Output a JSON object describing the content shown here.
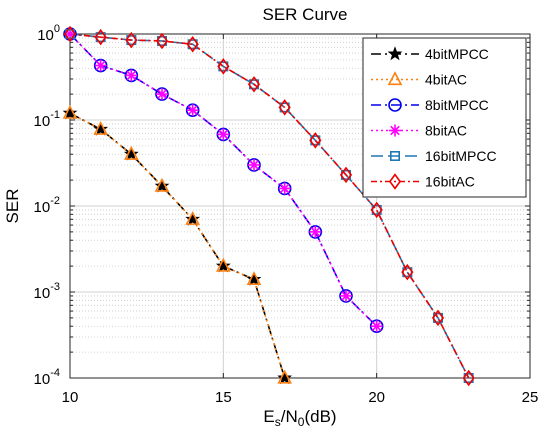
{
  "chart_data": {
    "type": "line",
    "title": "SER Curve",
    "xlabel_main": "E",
    "xlabel_sub_s": "s",
    "xlabel_mid": "/N",
    "xlabel_sub_0": "0",
    "xlabel_unit": "(dB)",
    "ylabel": "SER",
    "xlim": [
      10,
      25
    ],
    "ylim": [
      0.0001,
      1
    ],
    "yscale": "log",
    "grid": true,
    "legend_position": "top-right",
    "x_ticks": [
      "10",
      "15",
      "20",
      "25"
    ],
    "y_ticks": [
      {
        "base": "10",
        "exp": "0"
      },
      {
        "base": "10",
        "exp": "-1"
      },
      {
        "base": "10",
        "exp": "-2"
      },
      {
        "base": "10",
        "exp": "-3"
      },
      {
        "base": "10",
        "exp": "-4"
      }
    ],
    "series": [
      {
        "name": "4bitMPCC",
        "color": "#000000",
        "dash": "10,4,2,4",
        "marker": "star",
        "x": [
          10,
          11,
          12,
          13,
          14,
          15,
          16,
          17
        ],
        "y": [
          0.12,
          0.078,
          0.04,
          0.017,
          0.007,
          0.002,
          0.0014,
          0.0001
        ]
      },
      {
        "name": "4bitAC",
        "color": "#ff7f0e",
        "dash": "2,3",
        "marker": "triangle",
        "x": [
          10,
          11,
          12,
          13,
          14,
          15,
          16,
          17
        ],
        "y": [
          0.12,
          0.078,
          0.04,
          0.017,
          0.007,
          0.002,
          0.0014,
          0.0001
        ]
      },
      {
        "name": "8bitMPCC",
        "color": "#0000ee",
        "dash": "10,4,2,4",
        "marker": "circle",
        "x": [
          10,
          11,
          12,
          13,
          14,
          15,
          16,
          17,
          18,
          19,
          20
        ],
        "y": [
          1,
          0.43,
          0.33,
          0.2,
          0.13,
          0.068,
          0.03,
          0.016,
          0.005,
          0.0009,
          0.0004
        ]
      },
      {
        "name": "8bitAC",
        "color": "#ff00ff",
        "dash": "2,3",
        "marker": "asterisk",
        "x": [
          10,
          11,
          12,
          13,
          14,
          15,
          16,
          17,
          18,
          19,
          20
        ],
        "y": [
          1,
          0.43,
          0.33,
          0.2,
          0.13,
          0.068,
          0.03,
          0.016,
          0.005,
          0.0009,
          0.0004
        ]
      },
      {
        "name": "16bitMPCC",
        "color": "#1f77b4",
        "dash": "12,5",
        "marker": "square",
        "x": [
          10,
          11,
          12,
          13,
          14,
          15,
          16,
          17,
          18,
          19,
          20,
          21,
          22,
          23
        ],
        "y": [
          1,
          0.92,
          0.85,
          0.83,
          0.76,
          0.42,
          0.26,
          0.14,
          0.058,
          0.023,
          0.009,
          0.0017,
          0.0005,
          0.0001
        ]
      },
      {
        "name": "16bitAC",
        "color": "#ee0000",
        "dash": "6,3,2,3",
        "marker": "diamond",
        "x": [
          10,
          11,
          12,
          13,
          14,
          15,
          16,
          17,
          18,
          19,
          20,
          21,
          22,
          23
        ],
        "y": [
          1,
          0.92,
          0.85,
          0.83,
          0.76,
          0.42,
          0.26,
          0.14,
          0.058,
          0.023,
          0.009,
          0.0017,
          0.0005,
          0.0001
        ]
      }
    ]
  }
}
